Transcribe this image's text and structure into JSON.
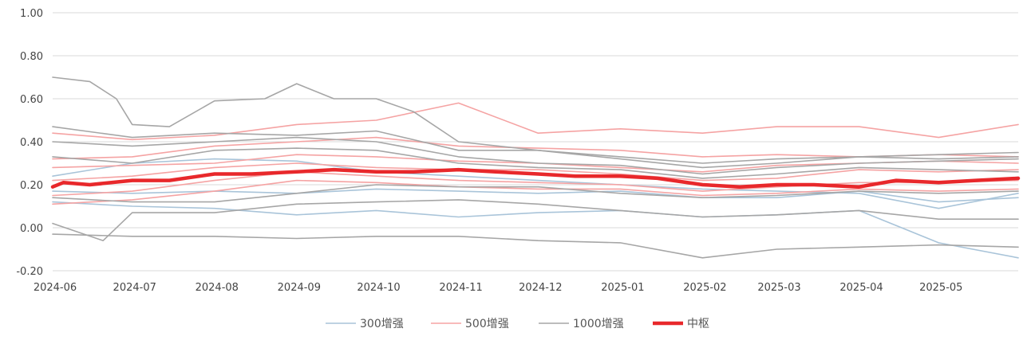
{
  "chart_data": {
    "type": "line",
    "x_ticks": [
      "2024-06",
      "2024-07",
      "2024-08",
      "2024-09",
      "2024-10",
      "2024-11",
      "2024-12",
      "2025-01",
      "2025-02",
      "2025-03",
      "2025-04",
      "2025-05"
    ],
    "y_ticks": [
      "1.00",
      "0.80",
      "0.60",
      "0.40",
      "0.20",
      "0.00",
      "-0.20"
    ],
    "ylim": [
      -0.2,
      1.0
    ],
    "xlim": [
      "2024-06-01",
      "2025-05-31"
    ],
    "grid": "horizontal",
    "legend_position": "bottom",
    "colors": {
      "300增强": "#a9c4d9",
      "500增强": "#f5a3a3",
      "1000增强": "#a6a6a6",
      "中枢": "#e8282b"
    },
    "series": [
      {
        "name": "300增强",
        "group": "300增强",
        "values": [
          [
            "2024-06-01",
            0.17
          ],
          [
            "2024-07-01",
            0.16
          ],
          [
            "2024-08-01",
            0.17
          ],
          [
            "2024-09-01",
            0.16
          ],
          [
            "2024-10-01",
            0.18
          ],
          [
            "2024-11-01",
            0.17
          ],
          [
            "2024-12-01",
            0.16
          ],
          [
            "2025-01-01",
            0.17
          ],
          [
            "2025-02-01",
            0.14
          ],
          [
            "2025-03-01",
            0.14
          ],
          [
            "2025-04-01",
            0.17
          ],
          [
            "2025-05-01",
            0.12
          ],
          [
            "2025-05-31",
            0.14
          ]
        ]
      },
      {
        "name": "300增强",
        "group": "300增强",
        "values": [
          [
            "2024-06-01",
            0.12
          ],
          [
            "2024-07-01",
            0.1
          ],
          [
            "2024-08-01",
            0.09
          ],
          [
            "2024-09-01",
            0.06
          ],
          [
            "2024-10-01",
            0.08
          ],
          [
            "2024-11-01",
            0.05
          ],
          [
            "2024-12-01",
            0.07
          ],
          [
            "2025-01-01",
            0.08
          ],
          [
            "2025-02-01",
            0.05
          ],
          [
            "2025-03-01",
            0.06
          ],
          [
            "2025-04-01",
            0.08
          ],
          [
            "2025-05-01",
            -0.07
          ],
          [
            "2025-05-31",
            -0.14
          ]
        ]
      },
      {
        "name": "300增强",
        "group": "300增强",
        "values": [
          [
            "2024-06-01",
            0.24
          ],
          [
            "2024-07-01",
            0.3
          ],
          [
            "2024-08-01",
            0.32
          ],
          [
            "2024-09-01",
            0.31
          ],
          [
            "2024-10-01",
            0.26
          ],
          [
            "2024-11-01",
            0.24
          ],
          [
            "2024-12-01",
            0.22
          ],
          [
            "2025-01-01",
            0.2
          ],
          [
            "2025-02-01",
            0.18
          ],
          [
            "2025-03-01",
            0.17
          ],
          [
            "2025-04-01",
            0.16
          ],
          [
            "2025-05-01",
            0.09
          ],
          [
            "2025-05-31",
            0.16
          ]
        ]
      },
      {
        "name": "500增强",
        "group": "500增强",
        "values": [
          [
            "2024-06-01",
            0.44
          ],
          [
            "2024-07-01",
            0.41
          ],
          [
            "2024-08-01",
            0.43
          ],
          [
            "2024-09-01",
            0.48
          ],
          [
            "2024-10-01",
            0.5
          ],
          [
            "2024-11-01",
            0.58
          ],
          [
            "2024-12-01",
            0.44
          ],
          [
            "2025-01-01",
            0.46
          ],
          [
            "2025-02-01",
            0.44
          ],
          [
            "2025-03-01",
            0.47
          ],
          [
            "2025-04-01",
            0.47
          ],
          [
            "2025-05-01",
            0.42
          ],
          [
            "2025-05-31",
            0.48
          ]
        ]
      },
      {
        "name": "500增强",
        "group": "500增强",
        "values": [
          [
            "2024-06-01",
            0.32
          ],
          [
            "2024-07-01",
            0.33
          ],
          [
            "2024-08-01",
            0.38
          ],
          [
            "2024-09-01",
            0.4
          ],
          [
            "2024-10-01",
            0.42
          ],
          [
            "2024-11-01",
            0.38
          ],
          [
            "2024-12-01",
            0.37
          ],
          [
            "2025-01-01",
            0.36
          ],
          [
            "2025-02-01",
            0.33
          ],
          [
            "2025-03-01",
            0.34
          ],
          [
            "2025-04-01",
            0.33
          ],
          [
            "2025-05-01",
            0.34
          ],
          [
            "2025-05-31",
            0.33
          ]
        ]
      },
      {
        "name": "500增强",
        "group": "500增强",
        "values": [
          [
            "2024-06-01",
            0.28
          ],
          [
            "2024-07-01",
            0.29
          ],
          [
            "2024-08-01",
            0.3
          ],
          [
            "2024-09-01",
            0.34
          ],
          [
            "2024-10-01",
            0.33
          ],
          [
            "2024-11-01",
            0.31
          ],
          [
            "2024-12-01",
            0.3
          ],
          [
            "2025-01-01",
            0.28
          ],
          [
            "2025-02-01",
            0.26
          ],
          [
            "2025-03-01",
            0.29
          ],
          [
            "2025-04-01",
            0.3
          ],
          [
            "2025-05-01",
            0.31
          ],
          [
            "2025-05-31",
            0.3
          ]
        ]
      },
      {
        "name": "500增强",
        "group": "500增强",
        "values": [
          [
            "2024-06-01",
            0.22
          ],
          [
            "2024-07-01",
            0.24
          ],
          [
            "2024-08-01",
            0.28
          ],
          [
            "2024-09-01",
            0.3
          ],
          [
            "2024-10-01",
            0.28
          ],
          [
            "2024-11-01",
            0.27
          ],
          [
            "2024-12-01",
            0.27
          ],
          [
            "2025-01-01",
            0.25
          ],
          [
            "2025-02-01",
            0.22
          ],
          [
            "2025-03-01",
            0.23
          ],
          [
            "2025-04-01",
            0.27
          ],
          [
            "2025-05-01",
            0.26
          ],
          [
            "2025-05-31",
            0.27
          ]
        ]
      },
      {
        "name": "500增强",
        "group": "500增强",
        "values": [
          [
            "2024-06-01",
            0.15
          ],
          [
            "2024-07-01",
            0.17
          ],
          [
            "2024-08-01",
            0.22
          ],
          [
            "2024-09-01",
            0.26
          ],
          [
            "2024-10-01",
            0.24
          ],
          [
            "2024-11-01",
            0.22
          ],
          [
            "2024-12-01",
            0.21
          ],
          [
            "2025-01-01",
            0.2
          ],
          [
            "2025-02-01",
            0.17
          ],
          [
            "2025-03-01",
            0.19
          ],
          [
            "2025-04-01",
            0.21
          ],
          [
            "2025-05-01",
            0.21
          ],
          [
            "2025-05-31",
            0.22
          ]
        ]
      },
      {
        "name": "500增强",
        "group": "500增强",
        "values": [
          [
            "2024-06-01",
            0.11
          ],
          [
            "2024-07-01",
            0.13
          ],
          [
            "2024-08-01",
            0.17
          ],
          [
            "2024-09-01",
            0.22
          ],
          [
            "2024-10-01",
            0.21
          ],
          [
            "2024-11-01",
            0.19
          ],
          [
            "2024-12-01",
            0.18
          ],
          [
            "2025-01-01",
            0.18
          ],
          [
            "2025-02-01",
            0.15
          ],
          [
            "2025-03-01",
            0.16
          ],
          [
            "2025-04-01",
            0.18
          ],
          [
            "2025-05-01",
            0.17
          ],
          [
            "2025-05-31",
            0.18
          ]
        ]
      },
      {
        "name": "1000增强",
        "group": "1000增强",
        "values": [
          [
            "2024-06-01",
            0.7
          ],
          [
            "2024-06-15",
            0.68
          ],
          [
            "2024-06-25",
            0.6
          ],
          [
            "2024-07-01",
            0.48
          ],
          [
            "2024-07-15",
            0.47
          ],
          [
            "2024-08-01",
            0.59
          ],
          [
            "2024-08-20",
            0.6
          ],
          [
            "2024-09-01",
            0.67
          ],
          [
            "2024-09-15",
            0.6
          ],
          [
            "2024-10-01",
            0.6
          ],
          [
            "2024-10-15",
            0.54
          ],
          [
            "2024-11-01",
            0.4
          ],
          [
            "2024-12-01",
            0.36
          ],
          [
            "2025-01-01",
            0.32
          ],
          [
            "2025-02-01",
            0.28
          ],
          [
            "2025-03-01",
            0.3
          ],
          [
            "2025-04-01",
            0.33
          ],
          [
            "2025-05-01",
            0.32
          ],
          [
            "2025-05-31",
            0.33
          ]
        ]
      },
      {
        "name": "1000增强",
        "group": "1000增强",
        "values": [
          [
            "2024-06-01",
            0.47
          ],
          [
            "2024-07-01",
            0.42
          ],
          [
            "2024-08-01",
            0.44
          ],
          [
            "2024-09-01",
            0.43
          ],
          [
            "2024-10-01",
            0.45
          ],
          [
            "2024-11-01",
            0.36
          ],
          [
            "2024-12-01",
            0.36
          ],
          [
            "2025-01-01",
            0.33
          ],
          [
            "2025-02-01",
            0.3
          ],
          [
            "2025-03-01",
            0.32
          ],
          [
            "2025-04-01",
            0.33
          ],
          [
            "2025-05-01",
            0.34
          ],
          [
            "2025-05-31",
            0.35
          ]
        ]
      },
      {
        "name": "1000增强",
        "group": "1000增强",
        "values": [
          [
            "2024-06-01",
            0.4
          ],
          [
            "2024-07-01",
            0.38
          ],
          [
            "2024-08-01",
            0.4
          ],
          [
            "2024-09-01",
            0.42
          ],
          [
            "2024-10-01",
            0.4
          ],
          [
            "2024-11-01",
            0.33
          ],
          [
            "2024-12-01",
            0.3
          ],
          [
            "2025-01-01",
            0.29
          ],
          [
            "2025-02-01",
            0.25
          ],
          [
            "2025-03-01",
            0.28
          ],
          [
            "2025-04-01",
            0.3
          ],
          [
            "2025-05-01",
            0.31
          ],
          [
            "2025-05-31",
            0.32
          ]
        ]
      },
      {
        "name": "1000增强",
        "group": "1000增强",
        "values": [
          [
            "2024-06-01",
            0.33
          ],
          [
            "2024-07-01",
            0.3
          ],
          [
            "2024-08-01",
            0.36
          ],
          [
            "2024-09-01",
            0.37
          ],
          [
            "2024-10-01",
            0.36
          ],
          [
            "2024-11-01",
            0.3
          ],
          [
            "2024-12-01",
            0.28
          ],
          [
            "2025-01-01",
            0.27
          ],
          [
            "2025-02-01",
            0.23
          ],
          [
            "2025-03-01",
            0.25
          ],
          [
            "2025-04-01",
            0.28
          ],
          [
            "2025-05-01",
            0.27
          ],
          [
            "2025-05-31",
            0.26
          ]
        ]
      },
      {
        "name": "1000增强",
        "group": "1000增强",
        "values": [
          [
            "2024-06-01",
            0.14
          ],
          [
            "2024-07-01",
            0.12
          ],
          [
            "2024-08-01",
            0.12
          ],
          [
            "2024-09-01",
            0.16
          ],
          [
            "2024-10-01",
            0.2
          ],
          [
            "2024-11-01",
            0.19
          ],
          [
            "2024-12-01",
            0.19
          ],
          [
            "2025-01-01",
            0.16
          ],
          [
            "2025-02-01",
            0.14
          ],
          [
            "2025-03-01",
            0.15
          ],
          [
            "2025-04-01",
            0.17
          ],
          [
            "2025-05-01",
            0.16
          ],
          [
            "2025-05-31",
            0.17
          ]
        ]
      },
      {
        "name": "1000增强",
        "group": "1000增强",
        "values": [
          [
            "2024-06-01",
            0.02
          ],
          [
            "2024-06-20",
            -0.06
          ],
          [
            "2024-07-01",
            0.07
          ],
          [
            "2024-08-01",
            0.07
          ],
          [
            "2024-09-01",
            0.11
          ],
          [
            "2024-10-01",
            0.12
          ],
          [
            "2024-11-01",
            0.13
          ],
          [
            "2024-12-01",
            0.11
          ],
          [
            "2025-01-01",
            0.08
          ],
          [
            "2025-02-01",
            0.05
          ],
          [
            "2025-03-01",
            0.06
          ],
          [
            "2025-04-01",
            0.08
          ],
          [
            "2025-05-01",
            0.04
          ],
          [
            "2025-05-31",
            0.04
          ]
        ]
      },
      {
        "name": "1000增强",
        "group": "1000增强",
        "values": [
          [
            "2024-06-01",
            -0.03
          ],
          [
            "2024-07-01",
            -0.04
          ],
          [
            "2024-08-01",
            -0.04
          ],
          [
            "2024-09-01",
            -0.05
          ],
          [
            "2024-10-01",
            -0.04
          ],
          [
            "2024-11-01",
            -0.04
          ],
          [
            "2024-12-01",
            -0.06
          ],
          [
            "2025-01-01",
            -0.07
          ],
          [
            "2025-02-01",
            -0.14
          ],
          [
            "2025-03-01",
            -0.1
          ],
          [
            "2025-04-01",
            -0.09
          ],
          [
            "2025-05-01",
            -0.08
          ],
          [
            "2025-05-31",
            -0.09
          ]
        ]
      },
      {
        "name": "中枢",
        "group": "中枢",
        "values": [
          [
            "2024-06-01",
            0.19
          ],
          [
            "2024-06-05",
            0.21
          ],
          [
            "2024-06-15",
            0.2
          ],
          [
            "2024-07-01",
            0.22
          ],
          [
            "2024-07-15",
            0.22
          ],
          [
            "2024-08-01",
            0.25
          ],
          [
            "2024-08-15",
            0.25
          ],
          [
            "2024-09-01",
            0.26
          ],
          [
            "2024-09-15",
            0.27
          ],
          [
            "2024-10-01",
            0.26
          ],
          [
            "2024-10-15",
            0.26
          ],
          [
            "2024-11-01",
            0.27
          ],
          [
            "2024-11-15",
            0.26
          ],
          [
            "2024-12-01",
            0.25
          ],
          [
            "2024-12-15",
            0.24
          ],
          [
            "2025-01-01",
            0.24
          ],
          [
            "2025-01-15",
            0.23
          ],
          [
            "2025-02-01",
            0.2
          ],
          [
            "2025-02-15",
            0.19
          ],
          [
            "2025-03-01",
            0.2
          ],
          [
            "2025-03-15",
            0.2
          ],
          [
            "2025-04-01",
            0.19
          ],
          [
            "2025-04-15",
            0.22
          ],
          [
            "2025-05-01",
            0.21
          ],
          [
            "2025-05-15",
            0.22
          ],
          [
            "2025-05-31",
            0.23
          ]
        ]
      }
    ],
    "legend": [
      {
        "label": "300增强",
        "group": "300增强"
      },
      {
        "label": "500增强",
        "group": "500增强"
      },
      {
        "label": "1000增强",
        "group": "1000增强"
      },
      {
        "label": "中枢",
        "group": "中枢"
      }
    ]
  }
}
